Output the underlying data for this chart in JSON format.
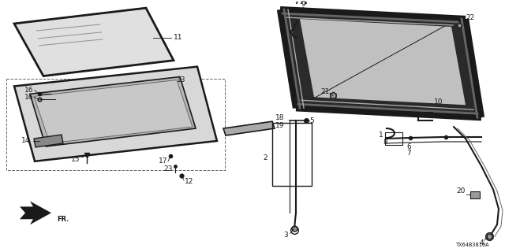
{
  "bg_color": "#ffffff",
  "diagram_code": "TX64B3810A",
  "dark": "#1a1a1a",
  "gray": "#666666",
  "light_gray": "#cccccc",
  "mid_gray": "#999999"
}
